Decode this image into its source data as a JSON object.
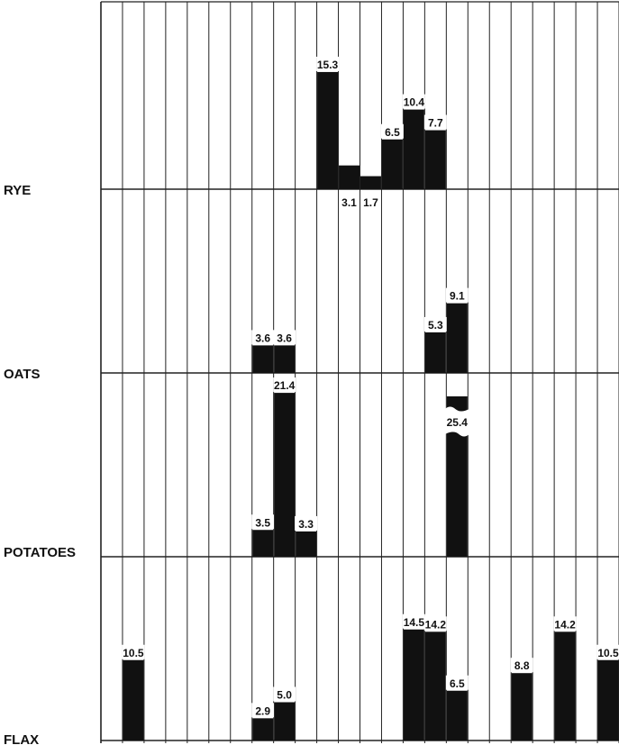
{
  "chart_data": {
    "type": "bar",
    "column_count": 24,
    "legend": "none",
    "grid": true,
    "rows": [
      {
        "name": "RYE",
        "ylim": [
          0,
          16.5
        ],
        "bars": [
          {
            "col": 10,
            "value": 15.3,
            "label": "15.3",
            "label_pos": "above"
          },
          {
            "col": 11,
            "value": 3.1,
            "label": "3.1",
            "label_pos": "below"
          },
          {
            "col": 12,
            "value": 1.7,
            "label": "1.7",
            "label_pos": "below"
          },
          {
            "col": 13,
            "value": 6.5,
            "label": "6.5",
            "label_pos": "above"
          },
          {
            "col": 14,
            "value": 10.4,
            "label": "10.4",
            "label_pos": "above"
          },
          {
            "col": 15,
            "value": 7.7,
            "label": "7.7",
            "label_pos": "above"
          }
        ]
      },
      {
        "name": "OATS",
        "ylim": [
          0,
          16.5
        ],
        "bars": [
          {
            "col": 7,
            "value": 3.6,
            "label": "3.6",
            "label_pos": "above"
          },
          {
            "col": 8,
            "value": 3.6,
            "label": "3.6",
            "label_pos": "above"
          },
          {
            "col": 15,
            "value": 5.3,
            "label": "5.3",
            "label_pos": "above"
          },
          {
            "col": 16,
            "value": 9.1,
            "label": "9.1",
            "label_pos": "above"
          }
        ]
      },
      {
        "name": "POTATOES",
        "ylim": [
          0,
          26
        ],
        "bars": [
          {
            "col": 7,
            "value": 3.5,
            "label": "3.5",
            "label_pos": "above"
          },
          {
            "col": 8,
            "value": 21.4,
            "label": "21.4",
            "label_pos": "above"
          },
          {
            "col": 9,
            "value": 3.3,
            "label": "3.3",
            "label_pos": "above"
          },
          {
            "col": 16,
            "value": 25.4,
            "label": "25.4",
            "label_pos": "break"
          }
        ]
      },
      {
        "name": "FLAX",
        "ylim": [
          0,
          16.5
        ],
        "bars": [
          {
            "col": 1,
            "value": 10.5,
            "label": "10.5",
            "label_pos": "above"
          },
          {
            "col": 7,
            "value": 2.9,
            "label": "2.9",
            "label_pos": "above"
          },
          {
            "col": 8,
            "value": 5.0,
            "label": "5.0",
            "label_pos": "above"
          },
          {
            "col": 14,
            "value": 14.5,
            "label": "14.5",
            "label_pos": "above"
          },
          {
            "col": 15,
            "value": 14.2,
            "label": "14.2",
            "label_pos": "above"
          },
          {
            "col": 16,
            "value": 6.5,
            "label": "6.5",
            "label_pos": "above"
          },
          {
            "col": 19,
            "value": 8.8,
            "label": "8.8",
            "label_pos": "above"
          },
          {
            "col": 21,
            "value": 14.2,
            "label": "14.2",
            "label_pos": "above"
          },
          {
            "col": 23,
            "value": 10.5,
            "label": "10.5",
            "label_pos": "above"
          }
        ]
      }
    ]
  },
  "colors": {
    "bar": "#111111",
    "grid": "#222222",
    "background": "#ffffff"
  }
}
